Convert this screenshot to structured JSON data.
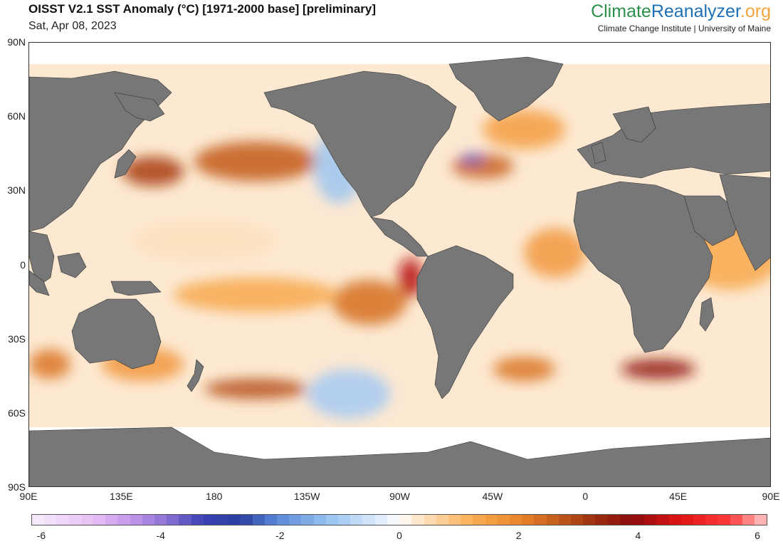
{
  "header": {
    "title": "OISST V2.1 SST Anomaly (°C) [1971-2000 base] [preliminary]",
    "date": "Sat, Apr 08, 2023"
  },
  "brand": {
    "part1": "Climate",
    "part2": "Reanalyzer",
    "part3": ".org",
    "affiliation": "Climate Change Institute | University of Maine",
    "colors": {
      "part1": "#2d8f4b",
      "part2": "#1f6fb3",
      "part3": "#f0a43a"
    }
  },
  "map": {
    "projection": "equirectangular",
    "lon_range": [
      90,
      450
    ],
    "lat_range": [
      -90,
      90
    ],
    "land_color": "#777777",
    "lat_labels": [
      {
        "text": "90N",
        "lat": 90
      },
      {
        "text": "60N",
        "lat": 60
      },
      {
        "text": "30N",
        "lat": 30
      },
      {
        "text": "0",
        "lat": 0
      },
      {
        "text": "30S",
        "lat": -30
      },
      {
        "text": "60S",
        "lat": -60
      },
      {
        "text": "90S",
        "lat": -90
      }
    ],
    "lon_labels": [
      {
        "text": "90E",
        "lon": 90
      },
      {
        "text": "135E",
        "lon": 135
      },
      {
        "text": "180",
        "lon": 180
      },
      {
        "text": "135W",
        "lon": 225
      },
      {
        "text": "90W",
        "lon": 270
      },
      {
        "text": "45W",
        "lon": 315
      },
      {
        "text": "0",
        "lon": 360
      },
      {
        "text": "45E",
        "lon": 405
      },
      {
        "text": "90E",
        "lon": 450
      }
    ],
    "anomaly_regions": [
      {
        "lon": 200,
        "lat": 42,
        "rx": 30,
        "ry": 8,
        "value": 2.6
      },
      {
        "lon": 150,
        "lat": 38,
        "rx": 15,
        "ry": 6,
        "value": 3.0
      },
      {
        "lon": 275,
        "lat": -5,
        "rx": 6,
        "ry": 8,
        "value": 4.2
      },
      {
        "lon": 255,
        "lat": -15,
        "rx": 18,
        "ry": 9,
        "value": 2.3
      },
      {
        "lon": 200,
        "lat": -12,
        "rx": 40,
        "ry": 7,
        "value": 1.3
      },
      {
        "lon": 200,
        "lat": -50,
        "rx": 25,
        "ry": 4,
        "value": 2.8
      },
      {
        "lon": 145,
        "lat": -40,
        "rx": 20,
        "ry": 7,
        "value": 1.6
      },
      {
        "lon": 310,
        "lat": 40,
        "rx": 15,
        "ry": 5,
        "value": 2.5
      },
      {
        "lon": 305,
        "lat": 43,
        "rx": 6,
        "ry": 2,
        "value": -3.5
      },
      {
        "lon": 330,
        "lat": 55,
        "rx": 20,
        "ry": 8,
        "value": 1.5
      },
      {
        "lon": 345,
        "lat": 5,
        "rx": 15,
        "ry": 10,
        "value": 1.6
      },
      {
        "lon": 395,
        "lat": -42,
        "rx": 18,
        "ry": 4,
        "value": 3.6
      },
      {
        "lon": 330,
        "lat": -42,
        "rx": 15,
        "ry": 5,
        "value": 2.2
      },
      {
        "lon": 240,
        "lat": 40,
        "rx": 12,
        "ry": 15,
        "value": -1.1
      },
      {
        "lon": 245,
        "lat": -52,
        "rx": 20,
        "ry": 10,
        "value": -1.0
      },
      {
        "lon": 175,
        "lat": 10,
        "rx": 35,
        "ry": 8,
        "value": 0.4
      },
      {
        "lon": 430,
        "lat": 5,
        "rx": 25,
        "ry": 15,
        "value": 1.3
      },
      {
        "lon": 100,
        "lat": -40,
        "rx": 10,
        "ry": 6,
        "value": 2.2
      }
    ]
  },
  "colorbar": {
    "min": -6,
    "max": 6,
    "step": 0.2,
    "ticks": [
      -6,
      -4,
      -2,
      0,
      2,
      4,
      6
    ],
    "stops": [
      {
        "v": -6,
        "c": "#f7ecfb"
      },
      {
        "v": -5,
        "c": "#e6bff5"
      },
      {
        "v": -4.4,
        "c": "#c598ea"
      },
      {
        "v": -3.8,
        "c": "#8c72d6"
      },
      {
        "v": -3.2,
        "c": "#3a40b4"
      },
      {
        "v": -2.6,
        "c": "#2a3fa0"
      },
      {
        "v": -2,
        "c": "#5a88d8"
      },
      {
        "v": -1.2,
        "c": "#95c0f0"
      },
      {
        "v": -0.4,
        "c": "#d8e8fa"
      },
      {
        "v": 0,
        "c": "#ffffff"
      },
      {
        "v": 0.4,
        "c": "#fde0bd"
      },
      {
        "v": 1.2,
        "c": "#f9ad52"
      },
      {
        "v": 2,
        "c": "#e8832a"
      },
      {
        "v": 2.6,
        "c": "#c25a1a"
      },
      {
        "v": 3.2,
        "c": "#9b2f10"
      },
      {
        "v": 3.8,
        "c": "#8a0c0c"
      },
      {
        "v": 4.6,
        "c": "#e21414"
      },
      {
        "v": 5.4,
        "c": "#ff3d3d"
      },
      {
        "v": 6,
        "c": "#ffcaca"
      }
    ]
  }
}
